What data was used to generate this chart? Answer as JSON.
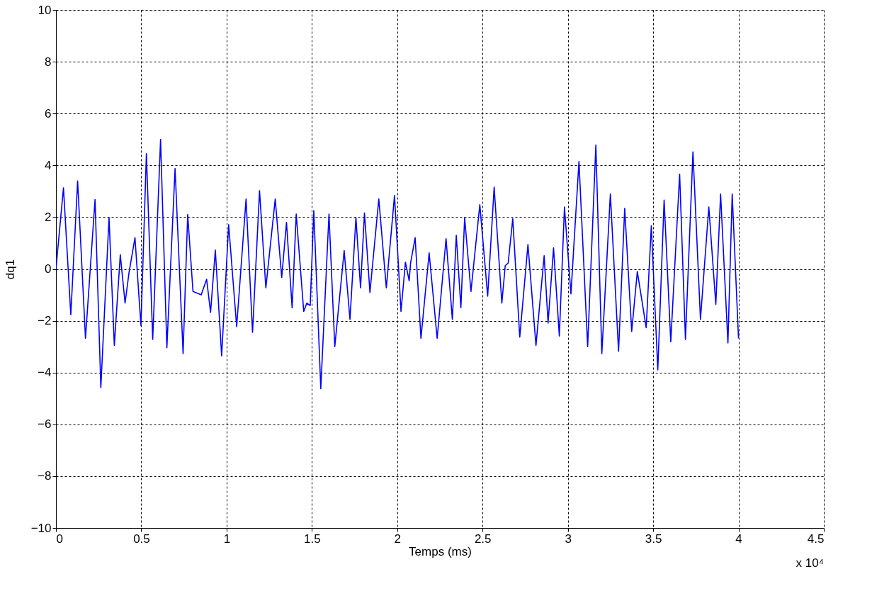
{
  "chart_data": {
    "type": "line",
    "xlabel": "Temps (ms)",
    "ylabel": "dq1",
    "annotations": [
      "x 10⁴"
    ],
    "xlim": [
      0,
      4.5
    ],
    "xticks": [
      0,
      0.5,
      1,
      1.5,
      2,
      2.5,
      3,
      3.5,
      4,
      4.5
    ],
    "ylim": [
      -10,
      10
    ],
    "yticks": [
      -10,
      -8,
      -6,
      -4,
      -2,
      0,
      2,
      4,
      6,
      8,
      10
    ],
    "grid": true,
    "line_style": "solid",
    "marker": "none",
    "series": [
      {
        "color": "#0000ff",
        "x": [
          0,
          0.044,
          0.087,
          0.127,
          0.173,
          0.229,
          0.263,
          0.311,
          0.342,
          0.377,
          0.405,
          0.428,
          0.463,
          0.498,
          0.53,
          0.567,
          0.613,
          0.65,
          0.698,
          0.745,
          0.772,
          0.803,
          0.851,
          0.883,
          0.906,
          0.934,
          0.971,
          1.012,
          1.059,
          1.114,
          1.152,
          1.193,
          1.23,
          1.285,
          1.323,
          1.351,
          1.384,
          1.408,
          1.452,
          1.47,
          1.49,
          1.511,
          1.552,
          1.6,
          1.634,
          1.689,
          1.723,
          1.758,
          1.785,
          1.808,
          1.84,
          1.892,
          1.936,
          1.984,
          2.022,
          2.048,
          2.07,
          2.078,
          2.105,
          2.139,
          2.187,
          2.234,
          2.286,
          2.323,
          2.346,
          2.373,
          2.395,
          2.432,
          2.484,
          2.53,
          2.568,
          2.613,
          2.633,
          2.65,
          2.677,
          2.718,
          2.766,
          2.813,
          2.861,
          2.884,
          2.916,
          2.95,
          2.98,
          3.018,
          3.065,
          3.116,
          3.164,
          3.199,
          3.249,
          3.297,
          3.333,
          3.374,
          3.407,
          3.459,
          3.489,
          3.527,
          3.564,
          3.603,
          3.655,
          3.689,
          3.733,
          3.777,
          3.826,
          3.867,
          3.895,
          3.938,
          3.963,
          4.0
        ],
        "values": [
          0,
          3.13,
          -1.77,
          3.4,
          -2.68,
          2.68,
          -4.58,
          1.98,
          -2.95,
          0.55,
          -1.32,
          -0.15,
          1.21,
          -2.18,
          4.45,
          -2.72,
          5.0,
          -3.04,
          3.88,
          -3.27,
          2.1,
          -0.87,
          -1.0,
          -0.4,
          -1.68,
          0.73,
          -3.36,
          1.71,
          -2.23,
          2.7,
          -2.45,
          3.02,
          -0.73,
          2.7,
          -0.33,
          1.8,
          -1.5,
          2.12,
          -1.64,
          -1.32,
          -1.41,
          2.25,
          -4.62,
          2.12,
          -3.0,
          0.71,
          -1.95,
          1.98,
          -0.73,
          2.16,
          -0.91,
          2.7,
          -0.73,
          2.84,
          -1.64,
          0.26,
          -0.46,
          0.22,
          1.21,
          -2.68,
          0.62,
          -2.68,
          1.17,
          -1.95,
          1.3,
          -1.5,
          1.98,
          -0.87,
          2.48,
          -1.05,
          3.16,
          -1.32,
          0.13,
          0.22,
          1.94,
          -2.63,
          0.94,
          -2.95,
          0.51,
          -2.09,
          0.81,
          -2.59,
          2.39,
          -0.96,
          4.15,
          -3.0,
          4.79,
          -3.27,
          2.89,
          -3.18,
          2.34,
          -2.41,
          -0.1,
          -2.27,
          1.67,
          -3.9,
          2.66,
          -2.81,
          3.66,
          -2.72,
          4.52,
          -1.95,
          2.39,
          -1.37,
          2.89,
          -2.86,
          2.89,
          -2.68
        ]
      }
    ]
  }
}
